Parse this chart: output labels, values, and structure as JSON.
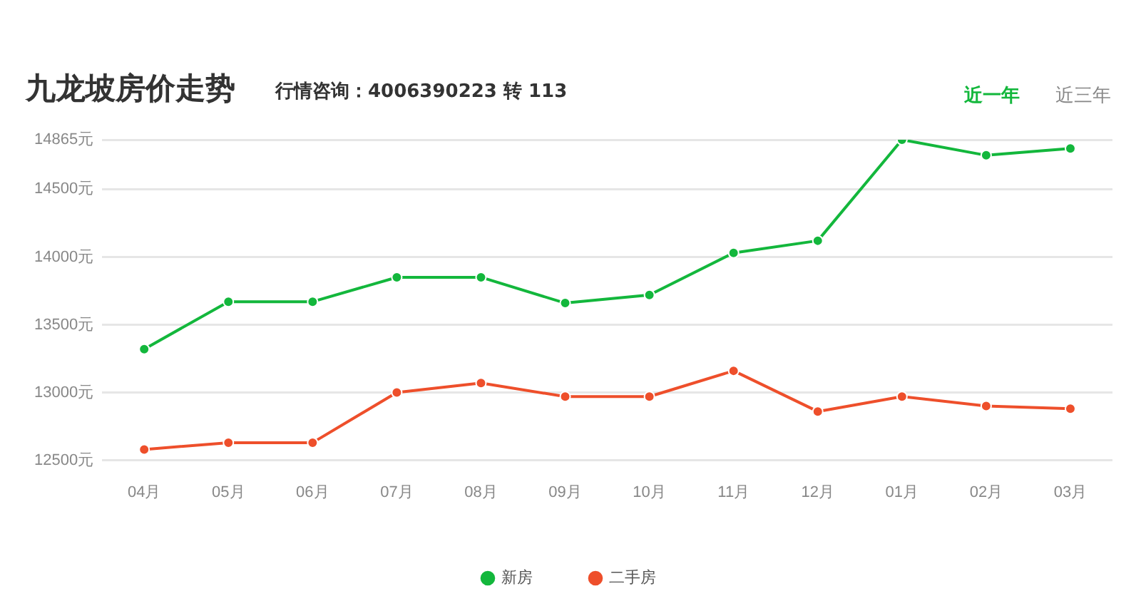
{
  "chart_data": {
    "type": "line",
    "title": "九龙坡房价走势",
    "subtitle": "行情咨询：4006390223 转 113",
    "annotations": [
      "近一年",
      "近三年"
    ],
    "categories": [
      "04月",
      "05月",
      "06月",
      "07月",
      "08月",
      "09月",
      "10月",
      "11月",
      "12月",
      "01月",
      "02月",
      "03月"
    ],
    "series": [
      {
        "name": "新房",
        "color": "#13b73c",
        "values": [
          13320,
          13670,
          13670,
          13850,
          13850,
          13660,
          13720,
          14030,
          14120,
          14865,
          14750,
          14800
        ]
      },
      {
        "name": "二手房",
        "color": "#ee4f2b",
        "values": [
          12580,
          12630,
          12630,
          13000,
          13070,
          12970,
          12970,
          13160,
          12860,
          12970,
          12900,
          12880
        ]
      }
    ],
    "ylim": [
      12500,
      14865
    ],
    "yticks": [
      {
        "value": 12500,
        "label": "12500元"
      },
      {
        "value": 13000,
        "label": "13000元"
      },
      {
        "value": 13500,
        "label": "13500元"
      },
      {
        "value": 14000,
        "label": "14000元"
      },
      {
        "value": 14500,
        "label": "14500元"
      },
      {
        "value": 14865,
        "label": "14865元"
      }
    ],
    "grid": "y",
    "legend": "bottom",
    "marker": "circle",
    "line_style": "solid"
  }
}
